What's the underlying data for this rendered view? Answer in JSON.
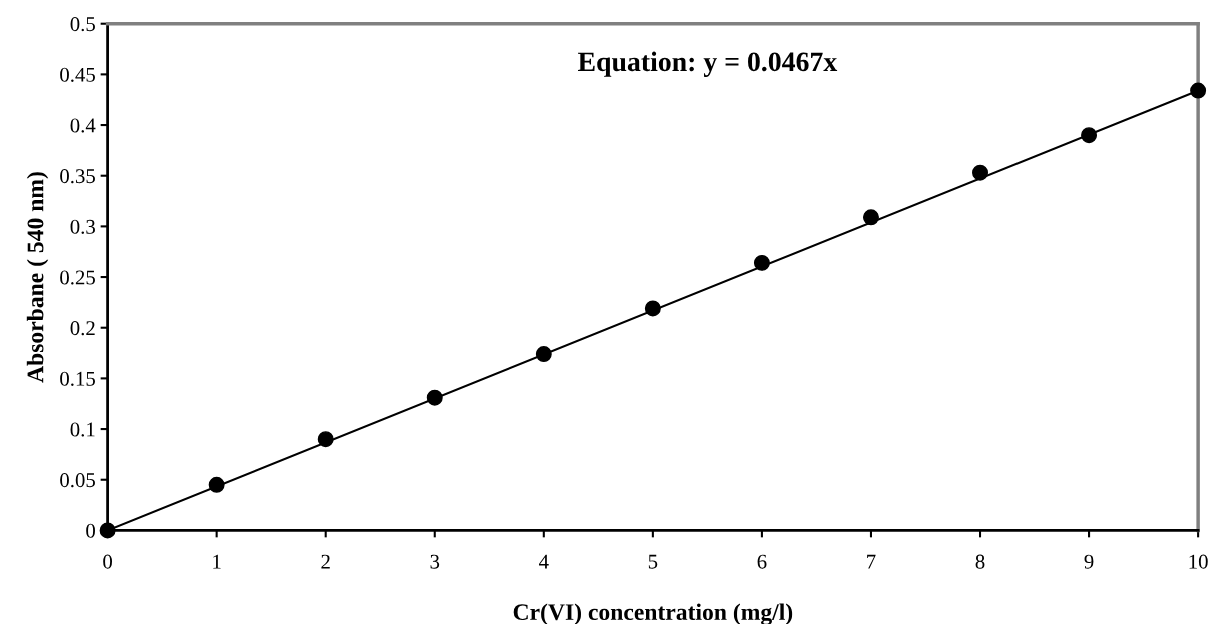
{
  "chart_data": {
    "type": "scatter",
    "xlabel": "Cr(VI) concentration (mg/l)",
    "ylabel": "Absorbane ( 540 nm)",
    "x": [
      0,
      1,
      2,
      3,
      4,
      5,
      6,
      7,
      8,
      9,
      10
    ],
    "series": [
      {
        "type": "line",
        "color": "#000000",
        "x": [
          0,
          10
        ],
        "values": [
          0,
          0.434
        ]
      },
      {
        "color": "#000000",
        "values": [
          0,
          0.045,
          0.09,
          0.131,
          0.174,
          0.219,
          0.264,
          0.309,
          0.353,
          0.39,
          0.434
        ],
        "marker": "circle"
      }
    ],
    "xlim": [
      0,
      10
    ],
    "xticks": [
      0,
      1,
      2,
      3,
      4,
      5,
      6,
      7,
      8,
      9,
      10
    ],
    "ylim": [
      0,
      0.5
    ],
    "yticks": [
      0,
      0.05,
      0.1,
      0.15,
      0.2,
      0.25,
      0.3,
      0.35,
      0.4,
      0.45,
      0.5
    ],
    "grid": false,
    "legend": false,
    "annotations": [
      "Equation: y = 0.0467x"
    ]
  }
}
